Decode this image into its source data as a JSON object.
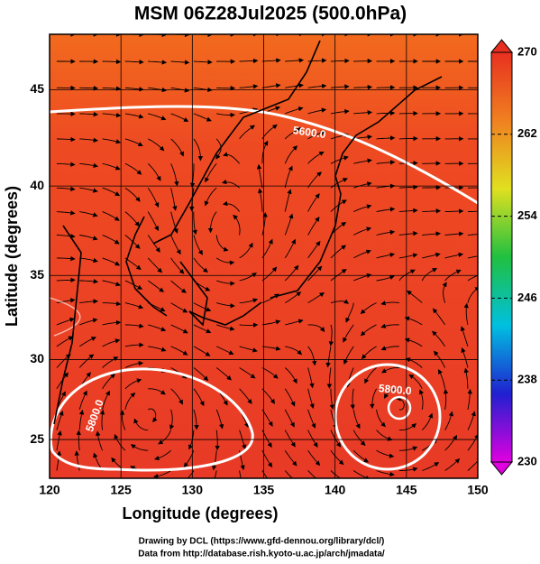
{
  "chart_data": {
    "type": "map",
    "title": "MSM 06Z28Jul2025 (500.0hPa)",
    "xlabel": "Longitude (degrees)",
    "ylabel": "Latitude  (degrees)",
    "projection": "mercator",
    "xlim": [
      120,
      150
    ],
    "xticks": [
      120,
      125,
      130,
      135,
      140,
      145,
      150
    ],
    "ylim": [
      22.5,
      47.7
    ],
    "yticks": [
      25,
      30,
      35,
      40,
      45
    ],
    "grid": true,
    "colorbar": {
      "lim": [
        230,
        270
      ],
      "ticks": [
        230,
        238,
        246,
        254,
        262,
        270
      ],
      "colors": [
        "#e000e0",
        "#2020d0",
        "#00c0e0",
        "#20c040",
        "#e0e020",
        "#f08020",
        "#e83020"
      ]
    },
    "contour_labels": [
      "5600.0",
      "5800.0",
      "5800.0"
    ],
    "footer": [
      "Drawing by DCL (https://www.gfd-dennou.org/library/dcl/)",
      "Data from http://database.rish.kyoto-u.ac.jp/arch/jmadata/"
    ]
  }
}
